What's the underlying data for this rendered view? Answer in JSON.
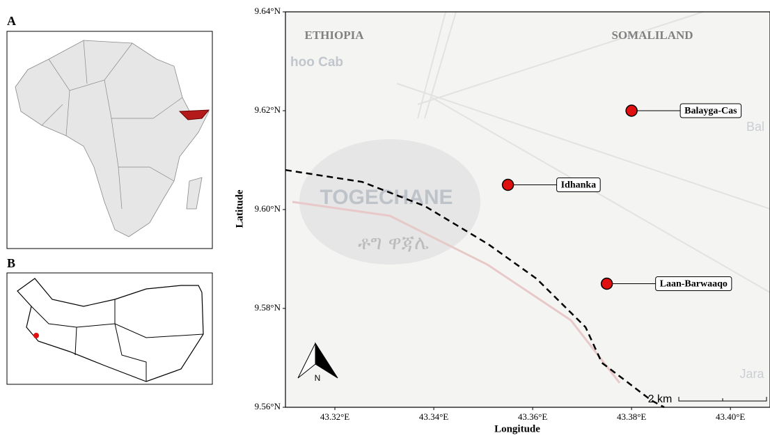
{
  "panel_labels": {
    "a": "A",
    "b": "B"
  },
  "chart_data": {
    "type": "map",
    "xlabel": "Longitude",
    "ylabel": "Latitude",
    "xlim": [
      43.31,
      43.408
    ],
    "ylim": [
      9.56,
      9.64
    ],
    "xticks": [
      {
        "value": 43.32,
        "label": "43.32°E"
      },
      {
        "value": 43.34,
        "label": "43.34°E"
      },
      {
        "value": 43.36,
        "label": "43.36°E"
      },
      {
        "value": 43.38,
        "label": "43.38°E"
      },
      {
        "value": 43.4,
        "label": "43.40°E"
      }
    ],
    "yticks": [
      {
        "value": 9.56,
        "label": "9.56°N"
      },
      {
        "value": 9.58,
        "label": "9.58°N"
      },
      {
        "value": 9.6,
        "label": "9.60°N"
      },
      {
        "value": 9.62,
        "label": "9.62°N"
      },
      {
        "value": 9.64,
        "label": "9.64°N"
      }
    ],
    "points": {
      "names": [
        "Balayga-Cas",
        "Idhanka",
        "Laan-Barwaaqo"
      ],
      "x": [
        43.38,
        43.355,
        43.375
      ],
      "y": [
        9.62,
        9.605,
        9.585
      ],
      "color": "#e01010"
    },
    "border": {
      "x": [
        43.31,
        43.3255,
        43.3382,
        43.351,
        43.3608,
        43.3707,
        43.374,
        43.384,
        43.3866
      ],
      "y": [
        9.608,
        9.6056,
        9.6007,
        9.593,
        9.586,
        9.5762,
        9.569,
        9.5614,
        9.56
      ]
    },
    "region_labels": [
      "ETHIOPIA",
      "SOMALILAND"
    ],
    "basemap_labels": [
      "TOGECHANE",
      "ቶግ ዋጃሌ",
      "hoo Cab",
      "Bal",
      "Jara"
    ],
    "north": "N",
    "scale_label": "2 km"
  }
}
